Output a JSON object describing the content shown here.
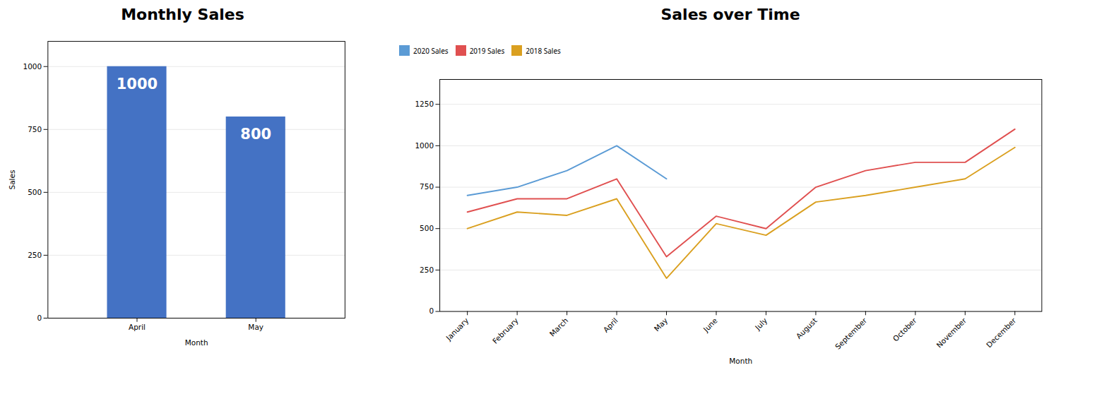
{
  "chart_data": [
    {
      "type": "bar",
      "title": "Monthly Sales",
      "xlabel": "Month",
      "ylabel": "Sales",
      "categories": [
        "April",
        "May"
      ],
      "values": [
        1000,
        800
      ],
      "color": "#4472C4",
      "ylim": [
        0,
        1100
      ],
      "yticks": [
        0,
        250,
        500,
        750,
        1000
      ],
      "grid": true,
      "data_labels": true
    },
    {
      "type": "line",
      "title": "Sales over Time",
      "xlabel": "Month",
      "categories": [
        "January",
        "February",
        "March",
        "April",
        "May",
        "June",
        "July",
        "August",
        "September",
        "October",
        "November",
        "December"
      ],
      "series": [
        {
          "name": "2020 Sales",
          "color": "#5B9BD5",
          "values": [
            700,
            750,
            850,
            1000,
            800,
            null,
            null,
            null,
            null,
            null,
            null,
            null
          ]
        },
        {
          "name": "2019 Sales",
          "color": "#E05050",
          "values": [
            600,
            680,
            680,
            800,
            330,
            575,
            500,
            750,
            850,
            900,
            900,
            1100
          ]
        },
        {
          "name": "2018 Sales",
          "color": "#DAA020",
          "values": [
            500,
            600,
            580,
            680,
            200,
            530,
            460,
            660,
            700,
            750,
            800,
            990
          ]
        }
      ],
      "ylim": [
        0,
        1400
      ],
      "yticks": [
        0,
        250,
        500,
        750,
        1000,
        1250
      ],
      "grid": true,
      "legend": "upper left"
    }
  ]
}
